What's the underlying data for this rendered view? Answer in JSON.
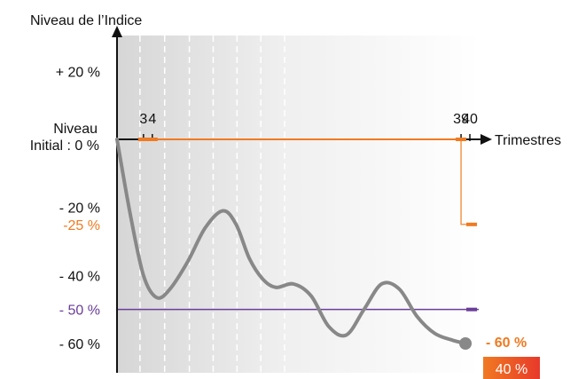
{
  "chart_data": {
    "type": "line",
    "title": "",
    "ylabel": "Niveau de l’Indice",
    "xlabel": "Trimestres",
    "initial_label_line1": "Niveau",
    "initial_label_line2": "Initial : 0 %",
    "ylim": [
      -68,
      28
    ],
    "xlim": [
      0,
      40
    ],
    "y_ticks": [
      {
        "value": 20,
        "label": "+ 20 %",
        "color": "#111111"
      },
      {
        "value": -20,
        "label": "- 20 %",
        "color": "#111111"
      },
      {
        "value": -25,
        "label": "-25 %",
        "color": "#f07a21"
      },
      {
        "value": -40,
        "label": "- 40 %",
        "color": "#111111"
      },
      {
        "value": -50,
        "label": "- 50 %",
        "color": "#6a3d9a"
      },
      {
        "value": -60,
        "label": "- 60 %",
        "color": "#111111"
      }
    ],
    "x_tick_labels": [
      {
        "value": 3,
        "label": "3"
      },
      {
        "value": 4,
        "label": "4"
      },
      {
        "value": 39,
        "label": "39"
      },
      {
        "value": 40,
        "label": "40"
      }
    ],
    "observation_dates": [
      3,
      4,
      39
    ],
    "series": [
      {
        "color": "#888888",
        "x": [
          0,
          1.5,
          3,
          4.5,
          6,
          8,
          10,
          12,
          13.5,
          15,
          16.5,
          18,
          20,
          22,
          24,
          26,
          28,
          30,
          32,
          34,
          36,
          38,
          39.5
        ],
        "y": [
          0,
          -22,
          -40,
          -46.5,
          -44,
          -36,
          -26,
          -21,
          -25,
          -35,
          -41,
          -43.5,
          -42.5,
          -46,
          -55,
          -57.5,
          -50,
          -42.5,
          -44,
          -52,
          -57,
          -59,
          -60
        ]
      }
    ],
    "thresholds": [
      {
        "value": -25,
        "color": "#f07a21"
      },
      {
        "value": -50,
        "color": "#6a3d9a"
      }
    ],
    "final": {
      "value": -60,
      "label": "- 60 %",
      "payout_label": "40 %",
      "label_color": "#f07a21",
      "badge_color": "#f07a21",
      "badge_color_end": "#e8392b"
    }
  }
}
